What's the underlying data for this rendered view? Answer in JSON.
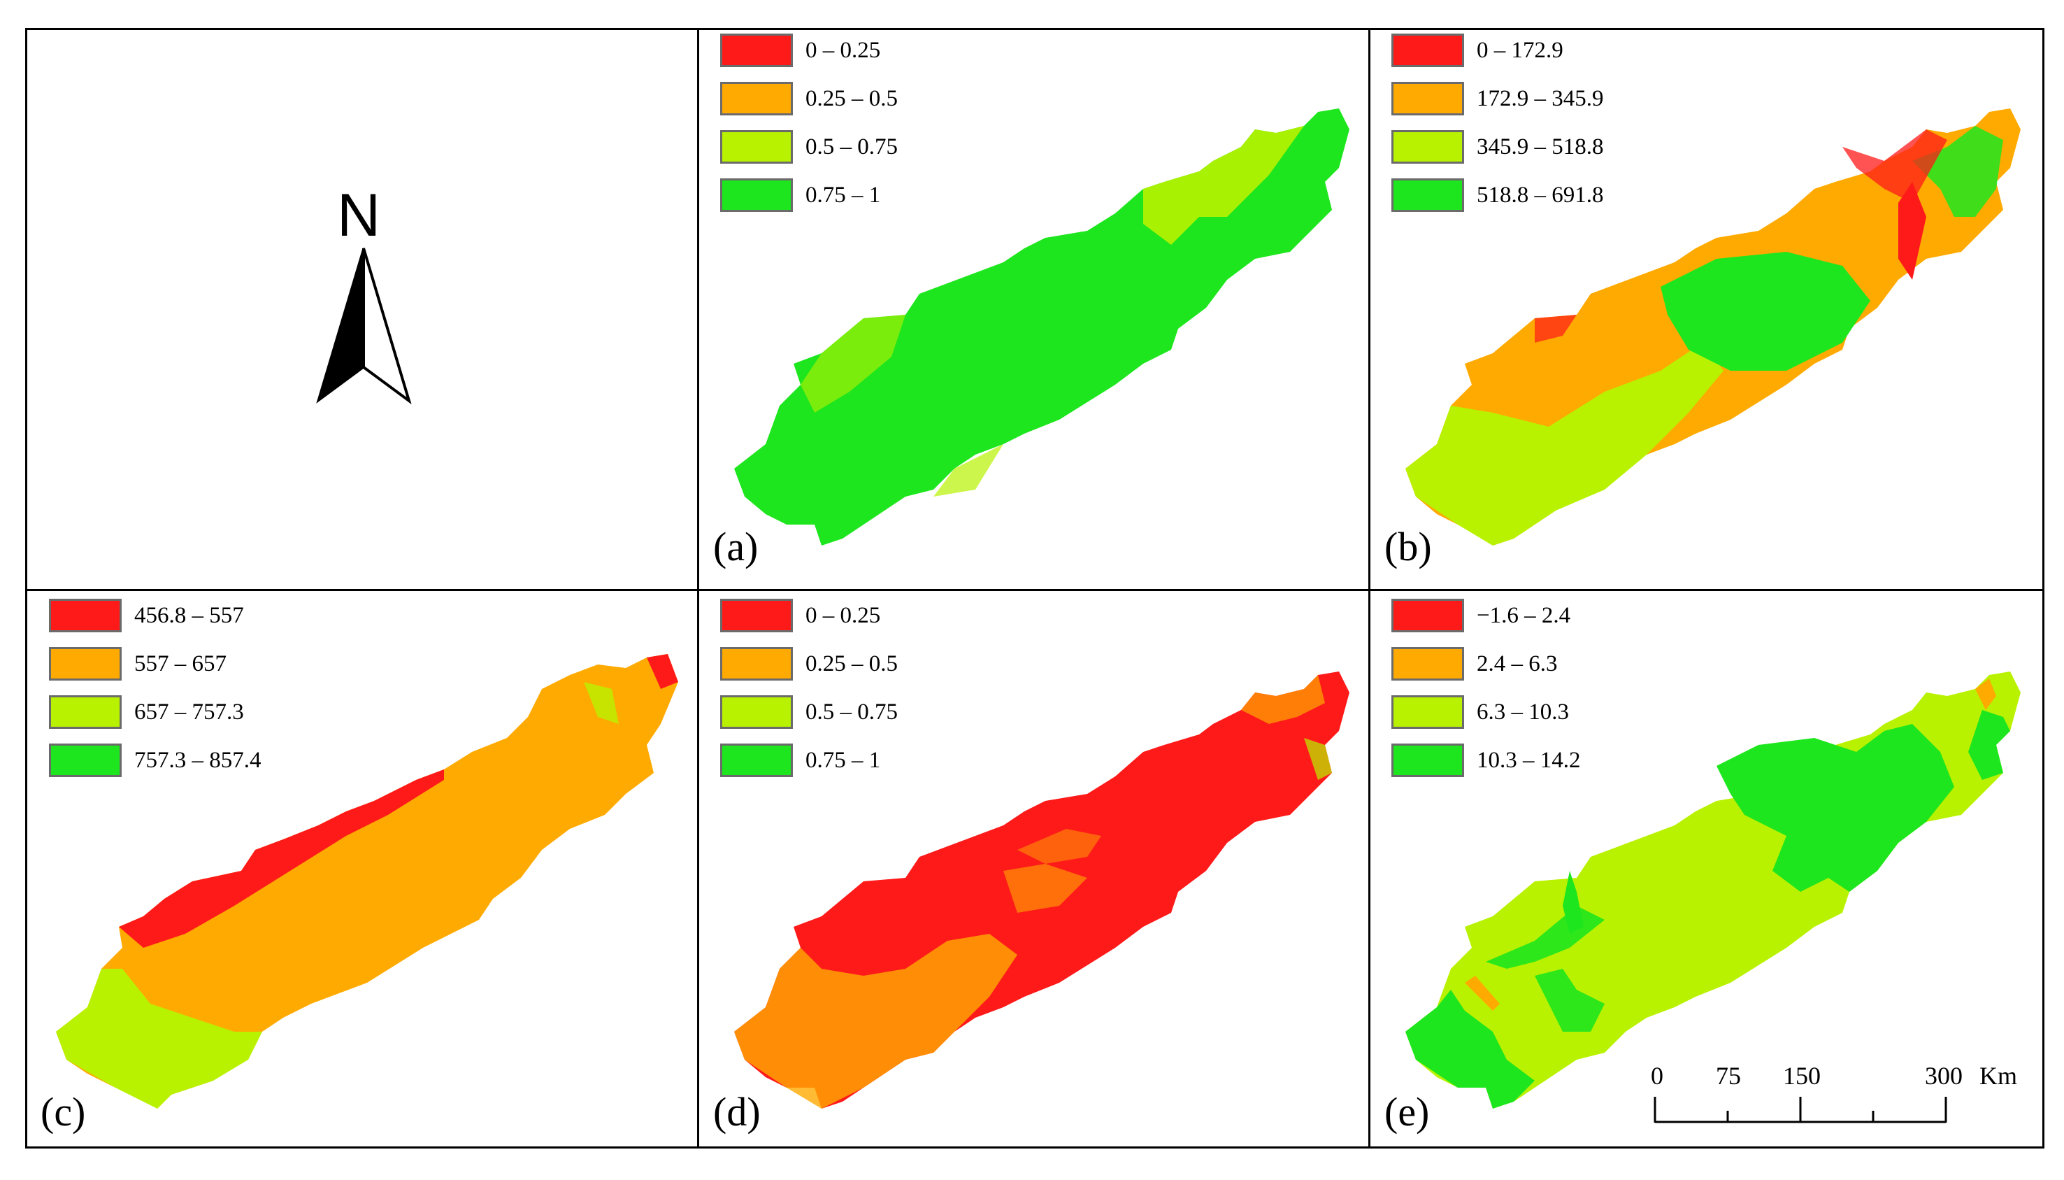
{
  "compass": {
    "label": "N"
  },
  "panels": {
    "a": {
      "label": "(a)",
      "legend": [
        {
          "label": "0 – 0.25",
          "color": "#ff1a1a"
        },
        {
          "label": "0.25 – 0.5",
          "color": "#ffaa00"
        },
        {
          "label": "0.5 – 0.75",
          "color": "#b8f200"
        },
        {
          "label": "0.75 – 1",
          "color": "#1ee61e"
        }
      ]
    },
    "b": {
      "label": "(b)",
      "legend": [
        {
          "label": "0 – 172.9",
          "color": "#ff1a1a"
        },
        {
          "label": "172.9 – 345.9",
          "color": "#ffaa00"
        },
        {
          "label": "345.9 – 518.8",
          "color": "#b8f200"
        },
        {
          "label": "518.8 – 691.8",
          "color": "#1ee61e"
        }
      ]
    },
    "c": {
      "label": "(c)",
      "legend": [
        {
          "label": "456.8 – 557",
          "color": "#ff1a1a"
        },
        {
          "label": "557 – 657",
          "color": "#ffaa00"
        },
        {
          "label": "657 – 757.3",
          "color": "#b8f200"
        },
        {
          "label": "757.3 – 857.4",
          "color": "#1ee61e"
        }
      ]
    },
    "d": {
      "label": "(d)",
      "legend": [
        {
          "label": "0 – 0.25",
          "color": "#ff1a1a"
        },
        {
          "label": "0.25 – 0.5",
          "color": "#ffaa00"
        },
        {
          "label": "0.5 – 0.75",
          "color": "#b8f200"
        },
        {
          "label": "0.75 – 1",
          "color": "#1ee61e"
        }
      ]
    },
    "e": {
      "label": "(e)",
      "legend": [
        {
          "label": "−1.6 – 2.4",
          "color": "#ff1a1a"
        },
        {
          "label": "2.4 – 6.3",
          "color": "#ffaa00"
        },
        {
          "label": "6.3 – 10.3",
          "color": "#b8f200"
        },
        {
          "label": "10.3 – 14.2",
          "color": "#1ee61e"
        }
      ]
    }
  },
  "scale_bar": {
    "ticks": [
      "0",
      "75",
      "150",
      "300"
    ],
    "unit": "Km"
  }
}
